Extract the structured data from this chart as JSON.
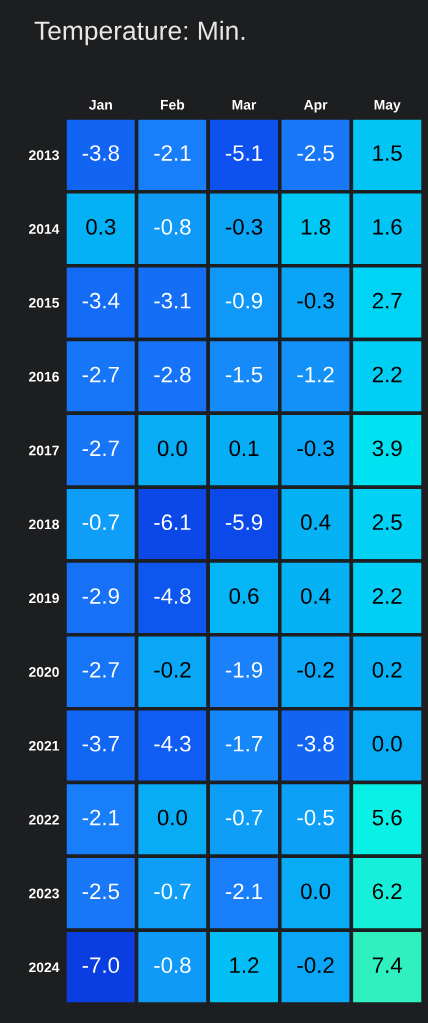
{
  "chart_data": {
    "type": "heatmap",
    "title": "Temperature: Min.",
    "categories": [
      "Jan",
      "Feb",
      "Mar",
      "Apr",
      "May"
    ],
    "y_categories": [
      "2013",
      "2014",
      "2015",
      "2016",
      "2017",
      "2018",
      "2019",
      "2020",
      "2021",
      "2022",
      "2023",
      "2024"
    ],
    "cells": [
      [
        -3.8,
        -2.1,
        -5.1,
        -2.5,
        1.5
      ],
      [
        0.3,
        -0.8,
        -0.3,
        1.8,
        1.6
      ],
      [
        -3.4,
        -3.1,
        -0.9,
        -0.3,
        2.7
      ],
      [
        -2.7,
        -2.8,
        -1.5,
        -1.2,
        2.2
      ],
      [
        -2.7,
        0.0,
        0.1,
        -0.3,
        3.9
      ],
      [
        -0.7,
        -6.1,
        -5.9,
        0.4,
        2.5
      ],
      [
        -2.9,
        -4.8,
        0.6,
        0.4,
        2.2
      ],
      [
        -2.7,
        -0.2,
        -1.9,
        -0.2,
        0.2
      ],
      [
        -3.7,
        -4.3,
        -1.7,
        -3.8,
        0.0
      ],
      [
        -2.1,
        0.0,
        -0.7,
        -0.5,
        5.6
      ],
      [
        -2.5,
        -0.7,
        -2.1,
        0.0,
        6.2
      ],
      [
        -7.0,
        -0.8,
        1.2,
        -0.2,
        7.4
      ]
    ],
    "cell_labels": [
      [
        "-3.8",
        "-2.1",
        "-5.1",
        "-2.5",
        "1.5"
      ],
      [
        "0.3",
        "-0.8",
        "-0.3",
        "1.8",
        "1.6"
      ],
      [
        "-3.4",
        "-3.1",
        "-0.9",
        "-0.3",
        "2.7"
      ],
      [
        "-2.7",
        "-2.8",
        "-1.5",
        "-1.2",
        "2.2"
      ],
      [
        "-2.7",
        "0.0",
        "0.1",
        "-0.3",
        "3.9"
      ],
      [
        "-0.7",
        "-6.1",
        "-5.9",
        "0.4",
        "2.5"
      ],
      [
        "-2.9",
        "-4.8",
        "0.6",
        "0.4",
        "2.2"
      ],
      [
        "-2.7",
        "-0.2",
        "-1.9",
        "-0.2",
        "0.2"
      ],
      [
        "-3.7",
        "-4.3",
        "-1.7",
        "-3.8",
        "0.0"
      ],
      [
        "-2.1",
        "0.0",
        "-0.7",
        "-0.5",
        "5.6"
      ],
      [
        "-2.5",
        "-0.7",
        "-2.1",
        "0.0",
        "6.2"
      ],
      [
        "-7.0",
        "-0.8",
        "1.2",
        "-0.2",
        "7.4"
      ]
    ],
    "data_labels": true
  }
}
